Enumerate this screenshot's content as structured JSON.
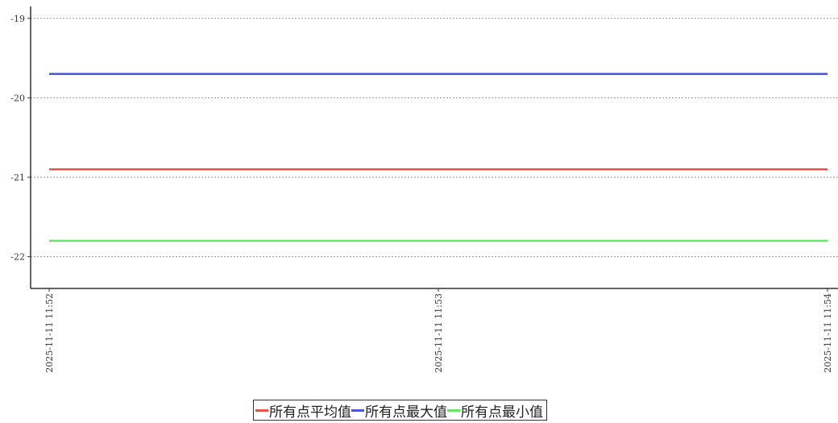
{
  "chart_data": {
    "type": "line",
    "title": "",
    "xlabel": "",
    "ylabel": "",
    "x": [
      "2025-11-11 11:52",
      "2025-11-11 11:53",
      "2025-11-11 11:54"
    ],
    "ylim": [
      -22.4,
      -18.85
    ],
    "yticks": [
      -19,
      -20,
      -21,
      -22
    ],
    "ytick_labels": [
      "-19",
      "-20",
      "-21",
      "-22"
    ],
    "grid": "horizontal-dotted",
    "legend_position": "bottom-center",
    "series": [
      {
        "name": "所有点平均值",
        "color": "#e8534a",
        "values": [
          -20.9,
          -20.9,
          -20.9
        ]
      },
      {
        "name": "所有点最大值",
        "color": "#4b56d8",
        "values": [
          -19.7,
          -19.7,
          -19.7
        ]
      },
      {
        "name": "所有点最小值",
        "color": "#66e860",
        "values": [
          -21.8,
          -21.8,
          -21.8
        ]
      }
    ]
  }
}
